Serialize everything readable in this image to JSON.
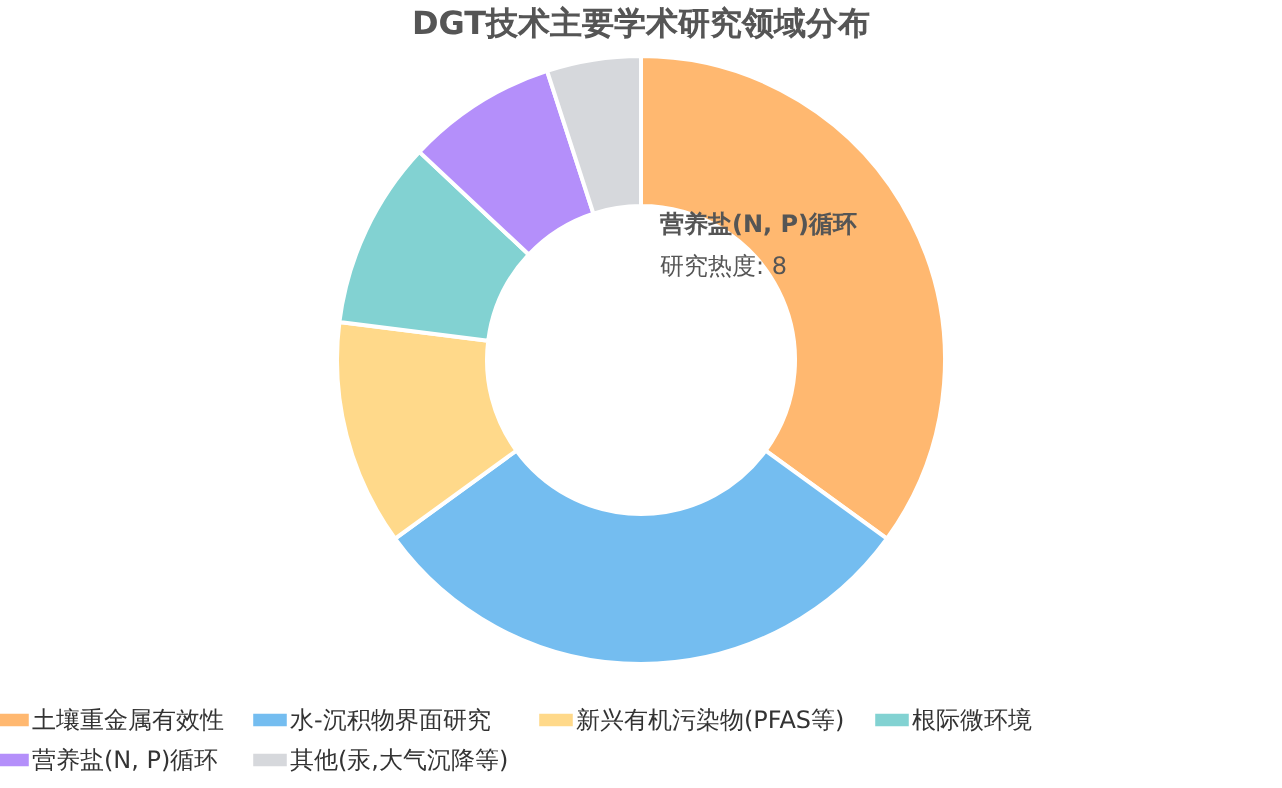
{
  "chart_data": {
    "type": "donut",
    "title": "DGT技术主要学术研究领域分布",
    "categories": [
      "土壤重金属有效性",
      "水-沉积物界面研究",
      "新兴有机污染物(PFAS等)",
      "根际微环境",
      "营养盐(N, P)循环",
      "其他(汞,大气沉降等)"
    ],
    "values": [
      35,
      30,
      12,
      10,
      8,
      5
    ],
    "colors": [
      "#ffb870",
      "#74bdf0",
      "#ffd98a",
      "#82d2d2",
      "#b48ffa",
      "#d6d8dc"
    ],
    "annotations": [
      "营养盐(N, P)循环",
      "研究热度: 8"
    ],
    "legend": "bottom"
  }
}
